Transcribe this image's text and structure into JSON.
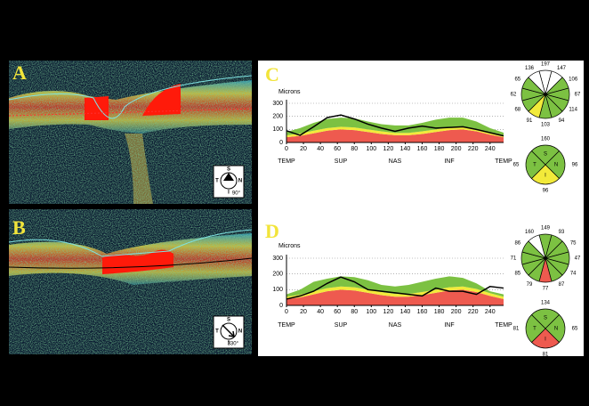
{
  "oct_scans": [
    {
      "label": "A",
      "compass": [
        "S",
        "T",
        "N",
        "I"
      ],
      "angle": "90°"
    },
    {
      "label": "B",
      "compass": [
        "S",
        "T",
        "N",
        "I"
      ],
      "angle": "330°"
    }
  ],
  "chart_data": [
    {
      "type": "line",
      "label": "C",
      "y_label": "Microns",
      "x": [
        0,
        16,
        32,
        48,
        64,
        80,
        96,
        112,
        128,
        144,
        160,
        176,
        192,
        208,
        224,
        240,
        256
      ],
      "xlim": [
        0,
        256
      ],
      "xticks": [
        0,
        20,
        40,
        60,
        80,
        100,
        120,
        140,
        160,
        180,
        200,
        220,
        240
      ],
      "ylim": [
        0,
        300
      ],
      "yticks": [
        0,
        100,
        200,
        300
      ],
      "grid": true,
      "xregions": [
        {
          "value": 0,
          "label": "TEMP"
        },
        {
          "value": 64,
          "label": "SUP"
        },
        {
          "value": 128,
          "label": "NAS"
        },
        {
          "value": 192,
          "label": "INF"
        },
        {
          "value": 256,
          "label": "TEMP"
        }
      ],
      "series": [
        {
          "kind": "area",
          "color": "#ee5a4f",
          "values": [
            40,
            50,
            70,
            90,
            100,
            95,
            80,
            65,
            55,
            55,
            65,
            80,
            95,
            100,
            85,
            60,
            40
          ]
        },
        {
          "kind": "area",
          "color": "#f2ea3a",
          "values": [
            15,
            18,
            20,
            20,
            20,
            20,
            20,
            20,
            18,
            18,
            20,
            20,
            20,
            20,
            20,
            18,
            15
          ]
        },
        {
          "kind": "area",
          "color": "#7cc142",
          "values": [
            25,
            42,
            60,
            70,
            70,
            70,
            60,
            55,
            57,
            57,
            65,
            75,
            75,
            70,
            55,
            32,
            20
          ]
        },
        {
          "kind": "line",
          "color": "#000000",
          "values": [
            90,
            55,
            120,
            190,
            210,
            180,
            140,
            110,
            85,
            110,
            125,
            110,
            115,
            120,
            100,
            75,
            50
          ]
        }
      ]
    },
    {
      "type": "line",
      "label": "D",
      "y_label": "Microns",
      "x": [
        0,
        16,
        32,
        48,
        64,
        80,
        96,
        112,
        128,
        144,
        160,
        176,
        192,
        208,
        224,
        240,
        256
      ],
      "xlim": [
        0,
        256
      ],
      "xticks": [
        0,
        20,
        40,
        60,
        80,
        100,
        120,
        140,
        160,
        180,
        200,
        220,
        240
      ],
      "ylim": [
        0,
        300
      ],
      "yticks": [
        0,
        100,
        200,
        300
      ],
      "grid": true,
      "xregions": [
        {
          "value": 0,
          "label": "TEMP"
        },
        {
          "value": 64,
          "label": "SUP"
        },
        {
          "value": 128,
          "label": "NAS"
        },
        {
          "value": 192,
          "label": "INF"
        },
        {
          "value": 256,
          "label": "TEMP"
        }
      ],
      "series": [
        {
          "kind": "area",
          "color": "#ee5a4f",
          "values": [
            40,
            50,
            70,
            90,
            100,
            95,
            80,
            65,
            55,
            55,
            65,
            80,
            95,
            100,
            85,
            60,
            40
          ]
        },
        {
          "kind": "area",
          "color": "#f2ea3a",
          "values": [
            15,
            18,
            20,
            20,
            20,
            20,
            20,
            20,
            18,
            18,
            20,
            20,
            20,
            20,
            20,
            18,
            15
          ]
        },
        {
          "kind": "area",
          "color": "#7cc142",
          "values": [
            15,
            32,
            60,
            60,
            65,
            65,
            60,
            45,
            47,
            57,
            65,
            70,
            70,
            55,
            35,
            12,
            15
          ]
        },
        {
          "kind": "line",
          "color": "#000000",
          "values": [
            40,
            60,
            90,
            140,
            180,
            150,
            100,
            90,
            80,
            70,
            60,
            110,
            90,
            90,
            70,
            120,
            110
          ]
        }
      ]
    }
  ],
  "sector_maps": [
    {
      "clock": [
        {
          "value": 197,
          "color": "#ffffff"
        },
        {
          "value": 147,
          "color": "#ffffff"
        },
        {
          "value": 106,
          "color": "#7cc142"
        },
        {
          "value": 67,
          "color": "#7cc142"
        },
        {
          "value": 114,
          "color": "#7cc142"
        },
        {
          "value": 94,
          "color": "#7cc142"
        },
        {
          "value": 103,
          "color": "#7cc142"
        },
        {
          "value": 91,
          "color": "#f2ea3a"
        },
        {
          "value": 68,
          "color": "#7cc142"
        },
        {
          "value": 62,
          "color": "#7cc142"
        },
        {
          "value": 65,
          "color": "#7cc142"
        },
        {
          "value": 136,
          "color": "#ffffff"
        }
      ],
      "quadrants": [
        {
          "letter": "S",
          "value": 160,
          "color": "#7cc142"
        },
        {
          "letter": "N",
          "value": 96,
          "color": "#7cc142"
        },
        {
          "letter": "I",
          "value": 96,
          "color": "#f2ea3a"
        },
        {
          "letter": "T",
          "value": 65,
          "color": "#7cc142"
        }
      ]
    },
    {
      "clock": [
        {
          "value": 149,
          "color": "#7cc142"
        },
        {
          "value": 93,
          "color": "#7cc142"
        },
        {
          "value": 75,
          "color": "#7cc142"
        },
        {
          "value": 47,
          "color": "#7cc142"
        },
        {
          "value": 74,
          "color": "#7cc142"
        },
        {
          "value": 87,
          "color": "#7cc142"
        },
        {
          "value": 77,
          "color": "#ee5a4f"
        },
        {
          "value": 79,
          "color": "#7cc142"
        },
        {
          "value": 85,
          "color": "#7cc142"
        },
        {
          "value": 71,
          "color": "#7cc142"
        },
        {
          "value": 86,
          "color": "#7cc142"
        },
        {
          "value": 160,
          "color": "#ffffff"
        }
      ],
      "quadrants": [
        {
          "letter": "S",
          "value": 134,
          "color": "#7cc142"
        },
        {
          "letter": "N",
          "value": 65,
          "color": "#7cc142"
        },
        {
          "letter": "I",
          "value": 81,
          "color": "#ee5a4f"
        },
        {
          "letter": "T",
          "value": 81,
          "color": "#7cc142"
        }
      ]
    }
  ]
}
